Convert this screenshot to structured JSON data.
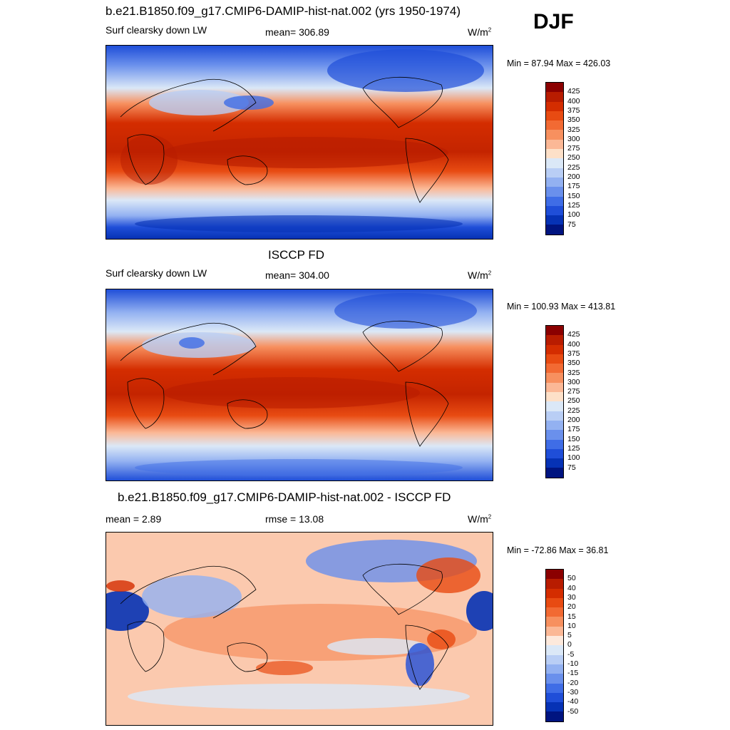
{
  "season": "DJF",
  "panels": [
    {
      "title": "b.e21.B1850.f09_g17.CMIP6-DAMIP-hist-nat.002 (yrs 1950-1974)",
      "left_label": "Surf clearsky down LW",
      "center_label": "mean= 306.89",
      "unit": "W/m",
      "unit_sup": "2",
      "minmax": "Min =  87.94 Max = 426.03",
      "cbar_labels": [
        "425",
        "400",
        "375",
        "350",
        "325",
        "300",
        "275",
        "250",
        "225",
        "200",
        "175",
        "150",
        "125",
        "100",
        "75"
      ],
      "cbar_colors": [
        "#8b0000",
        "#b81c00",
        "#d42d00",
        "#e84b12",
        "#f26a33",
        "#f7905f",
        "#fbb896",
        "#fde0c8",
        "#dbe8f7",
        "#b9cef5",
        "#93b1f1",
        "#6a90ec",
        "#3f6de6",
        "#1f4ed8",
        "#0632b5",
        "#001480"
      ]
    },
    {
      "title": "ISCCP FD",
      "left_label": "Surf clearsky down LW",
      "center_label": "mean= 304.00",
      "unit": "W/m",
      "unit_sup": "2",
      "minmax": "Min = 100.93 Max = 413.81",
      "cbar_labels": [
        "425",
        "400",
        "375",
        "350",
        "325",
        "300",
        "275",
        "250",
        "225",
        "200",
        "175",
        "150",
        "125",
        "100",
        "75"
      ],
      "cbar_colors": [
        "#8b0000",
        "#b81c00",
        "#d42d00",
        "#e84b12",
        "#f26a33",
        "#f7905f",
        "#fbb896",
        "#fde0c8",
        "#dbe8f7",
        "#b9cef5",
        "#93b1f1",
        "#6a90ec",
        "#3f6de6",
        "#1f4ed8",
        "#0632b5",
        "#001480"
      ]
    },
    {
      "title": "b.e21.B1850.f09_g17.CMIP6-DAMIP-hist-nat.002 - ISCCP FD",
      "left_label": "mean =   2.89",
      "center_label": "rmse =  13.08",
      "unit": "W/m",
      "unit_sup": "2",
      "minmax": "Min = -72.86 Max =  36.81",
      "cbar_labels": [
        "50",
        "40",
        "30",
        "20",
        "15",
        "10",
        "5",
        "0",
        "-5",
        "-10",
        "-15",
        "-20",
        "-30",
        "-40",
        "-50"
      ],
      "cbar_colors": [
        "#8b0000",
        "#b81c00",
        "#d42d00",
        "#e84b12",
        "#f26a33",
        "#f7905f",
        "#fbb896",
        "#fde9dc",
        "#dbe8f7",
        "#b9cef5",
        "#93b1f1",
        "#6a90ec",
        "#3f6de6",
        "#1f4ed8",
        "#0632b5",
        "#001480"
      ]
    }
  ]
}
